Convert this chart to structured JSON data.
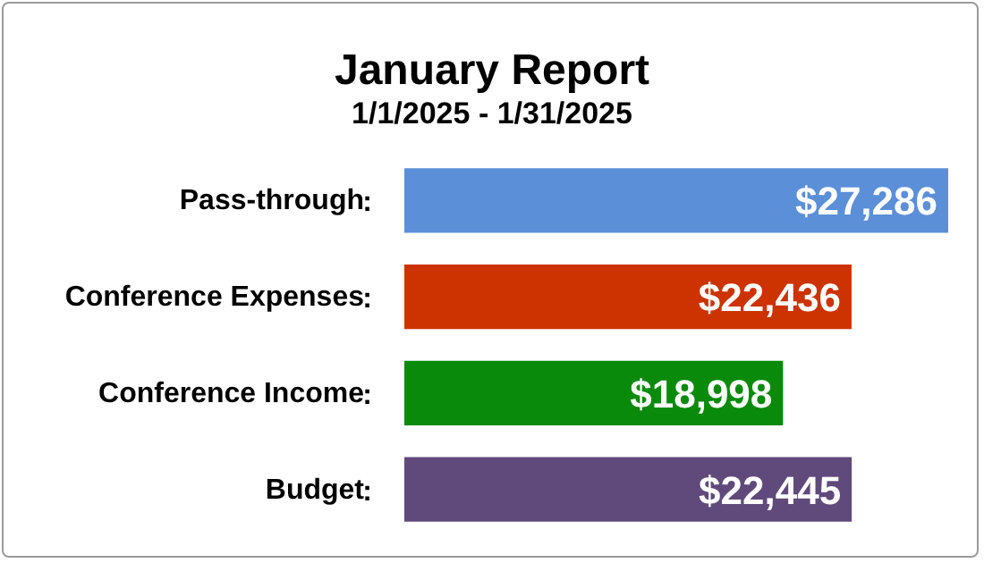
{
  "chart_data": {
    "type": "bar",
    "orientation": "horizontal",
    "title": "January Report",
    "subtitle": "1/1/2025 - 1/31/2025",
    "categories": [
      "Pass-through",
      "Conference Expenses",
      "Conference Income",
      "Budget"
    ],
    "values": [
      27286,
      22436,
      18998,
      22445
    ],
    "colors": [
      "#5b8fd8",
      "#cc3300",
      "#0a8a0a",
      "#604a7b"
    ],
    "value_labels": [
      "$27,286",
      "$22,436",
      "$18,998",
      "$22,445"
    ],
    "annotations": [
      ":",
      ":",
      ":",
      ":"
    ]
  }
}
